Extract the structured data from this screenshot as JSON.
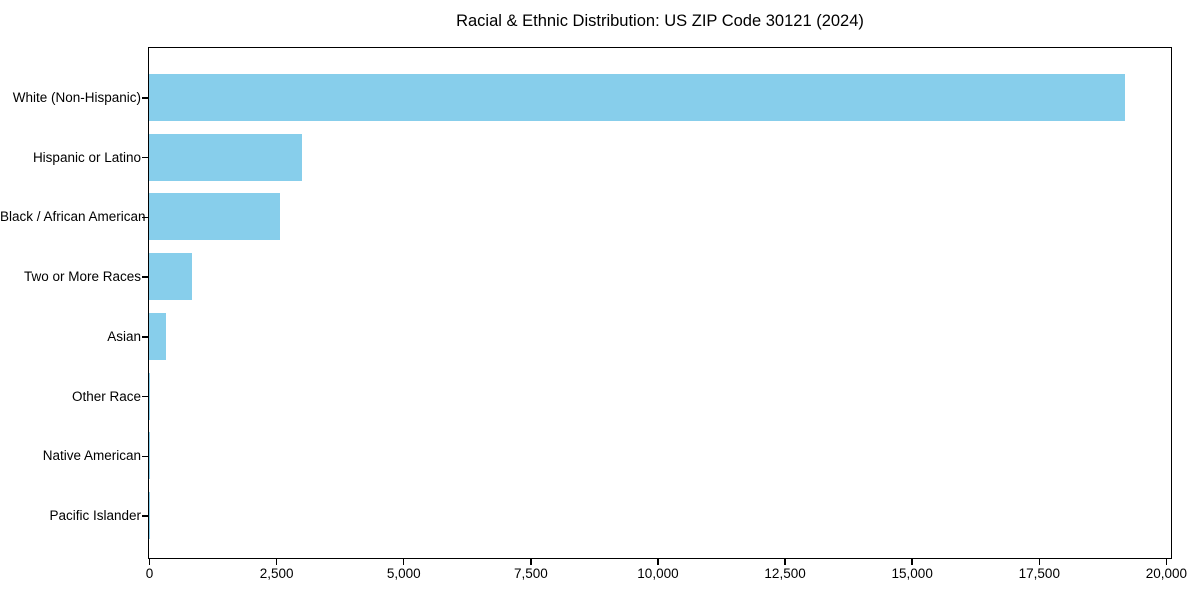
{
  "colors": {
    "bar": "#87CEEB",
    "axis": "#000000",
    "text": "#000000",
    "background": "#ffffff"
  },
  "chart_data": {
    "type": "bar",
    "orientation": "horizontal",
    "title": "Racial & Ethnic Distribution: US ZIP Code 30121 (2024)",
    "xlabel": "",
    "ylabel": "",
    "categories": [
      "White (Non-Hispanic)",
      "Hispanic or Latino",
      "Black / African American",
      "Two or More Races",
      "Asian",
      "Other Race",
      "Native American",
      "Pacific Islander"
    ],
    "values": [
      19200,
      3010,
      2580,
      855,
      330,
      25,
      10,
      5
    ],
    "xlim": [
      0,
      20080
    ],
    "xticks": [
      0,
      2500,
      5000,
      7500,
      10000,
      12500,
      15000,
      17500,
      20000
    ],
    "xtick_labels": [
      "0",
      "2,500",
      "5,000",
      "7,500",
      "10,000",
      "12,500",
      "15,000",
      "17,500",
      "20,000"
    ],
    "bar_color": "#87CEEB",
    "grid": false,
    "legend": false
  }
}
